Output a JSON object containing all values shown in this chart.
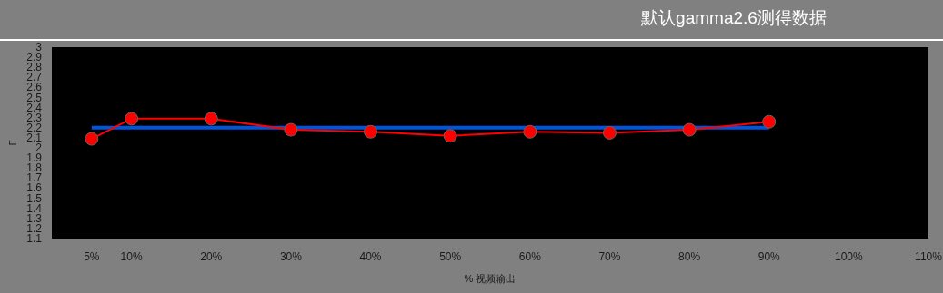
{
  "chart_data": {
    "type": "line",
    "title": "默认gamma2.6测得数据",
    "xlabel": "% 视频输出",
    "ylabel": "Γ",
    "xlim": [
      0,
      110
    ],
    "ylim": [
      1.1,
      3
    ],
    "xticks": [
      {
        "value": 5,
        "label": "5%"
      },
      {
        "value": 10,
        "label": "10%"
      },
      {
        "value": 20,
        "label": "20%"
      },
      {
        "value": 30,
        "label": "30%"
      },
      {
        "value": 40,
        "label": "40%"
      },
      {
        "value": 50,
        "label": "50%"
      },
      {
        "value": 60,
        "label": "60%"
      },
      {
        "value": 70,
        "label": "70%"
      },
      {
        "value": 80,
        "label": "80%"
      },
      {
        "value": 90,
        "label": "90%"
      },
      {
        "value": 100,
        "label": "100%"
      },
      {
        "value": 110,
        "label": "110%"
      }
    ],
    "yticks": [
      1.1,
      1.2,
      1.3,
      1.4,
      1.5,
      1.6,
      1.7,
      1.8,
      1.9,
      2,
      2.1,
      2.2,
      2.3,
      2.4,
      2.5,
      2.6,
      2.7,
      2.8,
      2.9,
      3
    ],
    "grid": false,
    "series": [
      {
        "color": "#0055dd",
        "x": [
          5,
          90
        ],
        "values": [
          2.2,
          2.2
        ],
        "marker": "none"
      },
      {
        "color": "#ff0000",
        "x": [
          5,
          10,
          20,
          30,
          40,
          50,
          60,
          70,
          80,
          90
        ],
        "values": [
          2.09,
          2.29,
          2.29,
          2.18,
          2.16,
          2.12,
          2.16,
          2.15,
          2.18,
          2.26
        ],
        "marker": "circle"
      }
    ]
  }
}
